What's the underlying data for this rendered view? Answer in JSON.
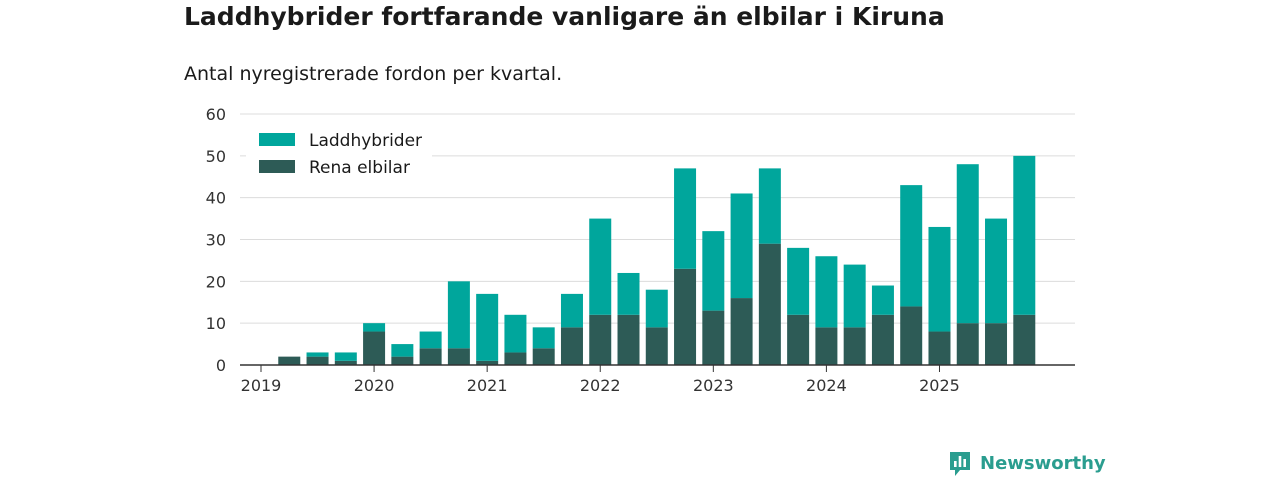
{
  "colors": {
    "phev": "#00a69c",
    "bev": "#2d5b56",
    "grid": "#dcdcdc",
    "axis": "#333333",
    "text": "#1a1a1a",
    "brand": "#2a9d8f"
  },
  "brand": {
    "name": "Newsworthy",
    "icon": "newsworthy-logo-icon"
  },
  "chart_data": {
    "type": "bar",
    "stacked": true,
    "title": "Laddhybrider fortfarande vanligare än elbilar i Kiruna",
    "subtitle": "Antal nyregistrerade fordon per kvartal.",
    "xlabel": "",
    "ylabel": "",
    "ylim": [
      0,
      60
    ],
    "yticks": [
      0,
      10,
      20,
      30,
      40,
      50,
      60
    ],
    "grid": true,
    "legend_position": "top-left",
    "categories": [
      "2019 Q1",
      "2019 Q2",
      "2019 Q3",
      "2019 Q4",
      "2020 Q1",
      "2020 Q2",
      "2020 Q3",
      "2020 Q4",
      "2021 Q1",
      "2021 Q2",
      "2021 Q3",
      "2021 Q4",
      "2022 Q1",
      "2022 Q2",
      "2022 Q3",
      "2022 Q4",
      "2023 Q1",
      "2023 Q2",
      "2023 Q3",
      "2023 Q4",
      "2024 Q1",
      "2024 Q2",
      "2024 Q3",
      "2024 Q4",
      "2025 Q1",
      "2025 Q2",
      "2025 Q3",
      "2025 Q4"
    ],
    "x_tick_labels": [
      "2019",
      "2020",
      "2021",
      "2022",
      "2023",
      "2024",
      "2025"
    ],
    "series": [
      {
        "name": "Rena elbilar",
        "key": "bev",
        "values": [
          0,
          2,
          2,
          1,
          8,
          2,
          4,
          4,
          1,
          3,
          4,
          9,
          12,
          12,
          9,
          23,
          13,
          16,
          29,
          12,
          9,
          9,
          12,
          14,
          8,
          10,
          10,
          12
        ]
      },
      {
        "name": "Laddhybrider",
        "key": "phev",
        "values": [
          0,
          0,
          1,
          2,
          2,
          3,
          4,
          16,
          16,
          9,
          5,
          8,
          23,
          10,
          9,
          24,
          19,
          25,
          18,
          16,
          17,
          15,
          7,
          29,
          25,
          38,
          25,
          38
        ]
      }
    ],
    "legend": [
      "Laddhybrider",
      "Rena elbilar"
    ]
  }
}
